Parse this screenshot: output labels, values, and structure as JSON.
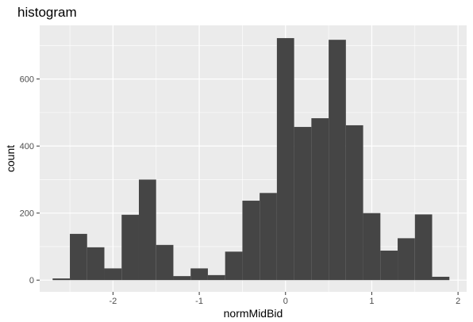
{
  "chart_data": {
    "type": "bar",
    "title": "histogram",
    "xlabel": "normMidBid",
    "ylabel": "count",
    "x_ticks": [
      -2,
      -1,
      0,
      1,
      2
    ],
    "x_tick_labels": [
      "-2",
      "-1",
      "0",
      "1",
      "2"
    ],
    "y_ticks": [
      0,
      200,
      400,
      600
    ],
    "y_tick_labels": [
      "0",
      "200",
      "400",
      "600"
    ],
    "xlim": [
      -2.85,
      2.1
    ],
    "ylim": [
      -35,
      760
    ],
    "grid": true,
    "bin_width": 0.2,
    "bin_left_edges": [
      -2.7,
      -2.5,
      -2.3,
      -2.1,
      -1.9,
      -1.7,
      -1.5,
      -1.3,
      -1.1,
      -0.9,
      -0.7,
      -0.5,
      -0.3,
      -0.1,
      0.1,
      0.3,
      0.5,
      0.7,
      0.9,
      1.1,
      1.3,
      1.5,
      1.7
    ],
    "values": [
      5,
      138,
      98,
      35,
      195,
      300,
      105,
      12,
      35,
      15,
      85,
      237,
      260,
      722,
      457,
      483,
      717,
      462,
      200,
      88,
      125,
      196,
      10
    ],
    "colors": {
      "panel": "#ebebeb",
      "grid_major": "#ffffff",
      "bar": "#454545"
    }
  }
}
